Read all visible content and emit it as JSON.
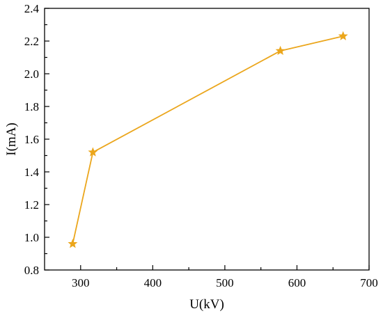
{
  "chart_data": {
    "type": "line",
    "title": "",
    "xlabel": "U(kV)",
    "ylabel": "I(mA)",
    "xlim": [
      250,
      700
    ],
    "ylim": [
      0.8,
      2.4
    ],
    "xticks": [
      300,
      400,
      500,
      600,
      700
    ],
    "yticks": [
      0.8,
      1.0,
      1.2,
      1.4,
      1.6,
      1.8,
      2.0,
      2.2,
      2.4
    ],
    "xtick_labels": [
      "300",
      "400",
      "500",
      "600",
      "700"
    ],
    "ytick_labels": [
      "0.8",
      "1.0",
      "1.2",
      "1.4",
      "1.6",
      "1.8",
      "2.0",
      "2.2",
      "2.4"
    ],
    "grid": false,
    "legend": "none",
    "marker": "star",
    "series": [
      {
        "x": [
          289,
          317,
          577,
          664
        ],
        "y": [
          0.96,
          1.52,
          2.14,
          2.23
        ],
        "color": "#EBA61C"
      }
    ]
  }
}
